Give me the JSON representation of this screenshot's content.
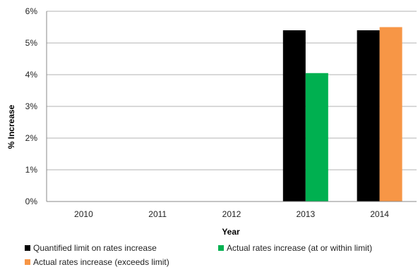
{
  "chart_data": {
    "type": "bar",
    "title": "",
    "xlabel": "Year",
    "ylabel": "% Increase",
    "categories": [
      "2010",
      "2011",
      "2012",
      "2013",
      "2014"
    ],
    "ylim": [
      0,
      6
    ],
    "y_ticks": [
      0,
      1,
      2,
      3,
      4,
      5,
      6
    ],
    "y_tick_labels": [
      "0%",
      "1%",
      "2%",
      "3%",
      "4%",
      "5%",
      "6%"
    ],
    "grid": true,
    "legend_position": "bottom",
    "series": [
      {
        "name": "Quantified limit on rates increase",
        "values": [
          null,
          null,
          null,
          5.4,
          5.4
        ],
        "color": "#000000"
      },
      {
        "name": "Actual rates increase (at or within limit)",
        "values": [
          null,
          null,
          null,
          4.05,
          null
        ],
        "color": "#00b050"
      },
      {
        "name": "Actual rates increase (exceeds limit)",
        "values": [
          null,
          null,
          null,
          null,
          5.5
        ],
        "color": "#f79646"
      }
    ]
  }
}
